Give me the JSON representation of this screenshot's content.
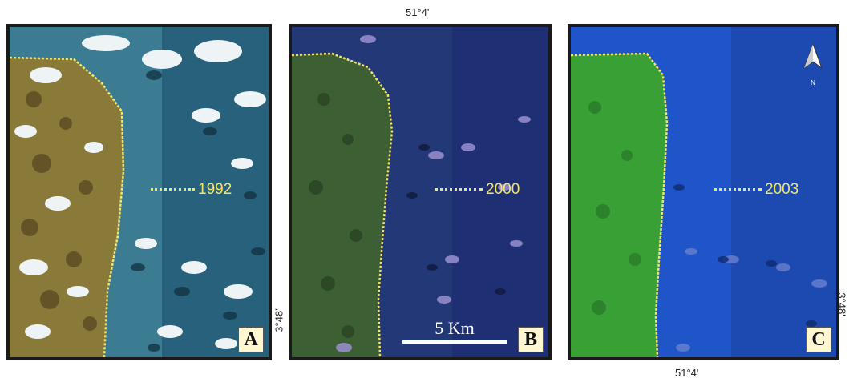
{
  "panels": [
    {
      "id": "A",
      "label": "A",
      "year": "1992",
      "colors": {
        "land": "#8a7a3a",
        "water": "#3c7d92",
        "cloud": "#e8eef2",
        "shadow": "#123040"
      }
    },
    {
      "id": "B",
      "label": "B",
      "year": "2000",
      "colors": {
        "land": "#3d5f34",
        "water": "#1f2f72",
        "cloud": "#9a8fd0",
        "shadow": "#101a3c"
      }
    },
    {
      "id": "C",
      "label": "C",
      "year": "2003",
      "colors": {
        "land": "#38a035",
        "water": "#1f55c8",
        "cloud": "#6a7fd0",
        "shadow": "#102a70"
      }
    }
  ],
  "coordinates": {
    "top_longitude": "51°4'",
    "bottom_longitude": "51°4'",
    "left_latitude": "3°48'",
    "right_latitude": "3°48'"
  },
  "scale_bar": {
    "label": "5 Km"
  },
  "north_arrow": {
    "letter": "N"
  },
  "shoreline_color": "#f4e46a"
}
